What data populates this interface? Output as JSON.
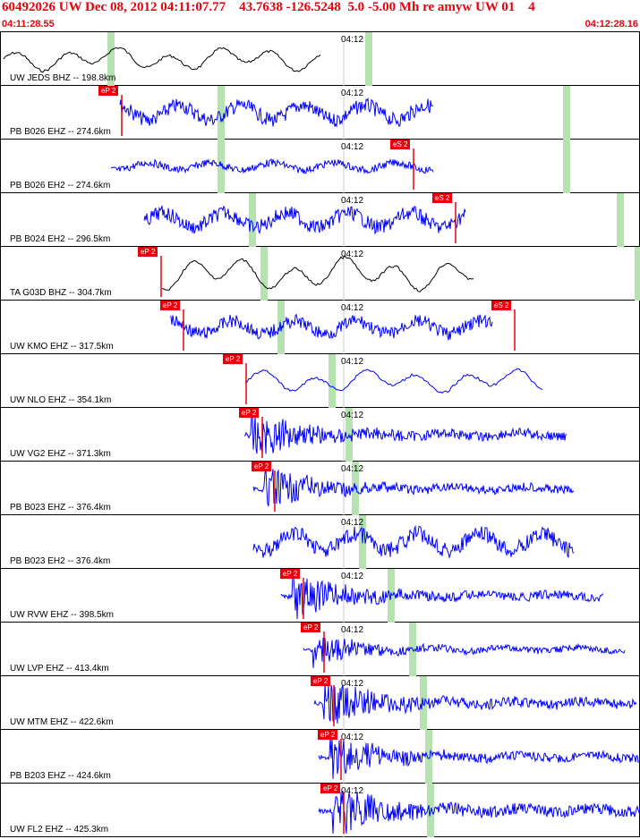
{
  "header": {
    "title": "60492026 UW Dec 08, 2012 04:11:07.77    43.7638 -126.5248  5.0 -5.00 Mh re amyw UW 01    4",
    "start_time": "04:11:28.55",
    "end_time": "04:12:28.16"
  },
  "colors": {
    "trace_blue": "#0000ff",
    "trace_black": "#000000",
    "pick_red": "#e8000b",
    "bar_green": "#b5e2b0"
  },
  "time_tick_label": "04:12",
  "traces": [
    {
      "label": "UW JEDS BHZ -- 198.8km",
      "color": "black",
      "style": "smooth",
      "start": 3,
      "end": 358,
      "amp": 14,
      "picks": [],
      "bars": [
        119,
        407
      ]
    },
    {
      "label": "PB B026 EHZ -- 274.6km",
      "color": "blue",
      "style": "noisy",
      "start": 133,
      "end": 483,
      "amp": 18,
      "picks": [
        {
          "text": "eP 2",
          "x": 109
        }
      ],
      "bars": [
        242,
        628
      ]
    },
    {
      "label": "PB B026 EH2 -- 274.6km",
      "color": "blue",
      "style": "noisy",
      "start": 123,
      "end": 483,
      "amp": 9,
      "picks": [
        {
          "text": "eS 2",
          "x": 435
        }
      ],
      "bars": [
        242,
        628
      ]
    },
    {
      "label": "PB B024 EH2 -- 296.5km",
      "color": "blue",
      "style": "noisy",
      "start": 160,
      "end": 519,
      "amp": 18,
      "picks": [
        {
          "text": "eS 2",
          "x": 482
        }
      ],
      "bars": [
        277,
        688
      ]
    },
    {
      "label": "TA G03D BHZ -- 304.7km",
      "color": "black",
      "style": "smooth",
      "start": 180,
      "end": 529,
      "amp": 20,
      "picks": [
        {
          "text": "eP 2",
          "x": 153
        }
      ],
      "bars": [
        290,
        708
      ]
    },
    {
      "label": "UW KMO EHZ -- 317.5km",
      "color": "blue",
      "style": "noisy",
      "start": 189,
      "end": 549,
      "amp": 16,
      "picks": [
        {
          "text": "eP 2",
          "x": 178
        },
        {
          "text": "eS 2",
          "x": 548
        }
      ],
      "bars": [
        309
      ]
    },
    {
      "label": "UW NLO EHZ -- 354.1km",
      "color": "blue",
      "style": "smooth",
      "start": 273,
      "end": 606,
      "amp": 14,
      "picks": [
        {
          "text": "eP 2",
          "x": 248
        }
      ],
      "bars": [
        366
      ]
    },
    {
      "label": "UW VG2 EHZ -- 371.3km",
      "color": "blue",
      "style": "burst",
      "start": 272,
      "end": 632,
      "amp": 22,
      "picks": [
        {
          "text": "eP 2",
          "x": 266
        }
      ],
      "bars": [
        385
      ]
    },
    {
      "label": "PB B023 EHZ -- 376.4km",
      "color": "blue",
      "style": "burst",
      "start": 282,
      "end": 640,
      "amp": 20,
      "picks": [
        {
          "text": "eP 2",
          "x": 280
        }
      ],
      "bars": [
        392
      ]
    },
    {
      "label": "PB B023 EH2 -- 376.4km",
      "color": "blue",
      "style": "noisy",
      "start": 282,
      "end": 640,
      "amp": 20,
      "picks": [],
      "bars": [
        400
      ]
    },
    {
      "label": "UW RVW EHZ -- 398.5km",
      "color": "blue",
      "style": "burst",
      "start": 313,
      "end": 673,
      "amp": 20,
      "picks": [
        {
          "text": "eP 2",
          "x": 312
        }
      ],
      "bars": [
        432
      ]
    },
    {
      "label": "UW LVP EHZ -- 413.4km",
      "color": "blue",
      "style": "burst",
      "start": 338,
      "end": 697,
      "amp": 14,
      "picks": [
        {
          "text": "eP 2",
          "x": 335
        }
      ],
      "bars": [
        456
      ]
    },
    {
      "label": "UW MTM EHZ -- 422.6km",
      "color": "blue",
      "style": "burst",
      "start": 350,
      "end": 710,
      "amp": 22,
      "picks": [
        {
          "text": "eP 2",
          "x": 346
        }
      ],
      "bars": [
        468
      ]
    },
    {
      "label": "PB B203 EHZ -- 424.6km",
      "color": "blue",
      "style": "burst",
      "start": 355,
      "end": 715,
      "amp": 20,
      "picks": [
        {
          "text": "eP 2",
          "x": 354
        }
      ],
      "bars": [
        474
      ]
    },
    {
      "label": "UW FL2 EHZ -- 425.3km",
      "color": "blue",
      "style": "burst",
      "start": 355,
      "end": 715,
      "amp": 24,
      "picks": [
        {
          "text": "eP 2",
          "x": 357
        }
      ],
      "bars": [
        476
      ]
    }
  ]
}
